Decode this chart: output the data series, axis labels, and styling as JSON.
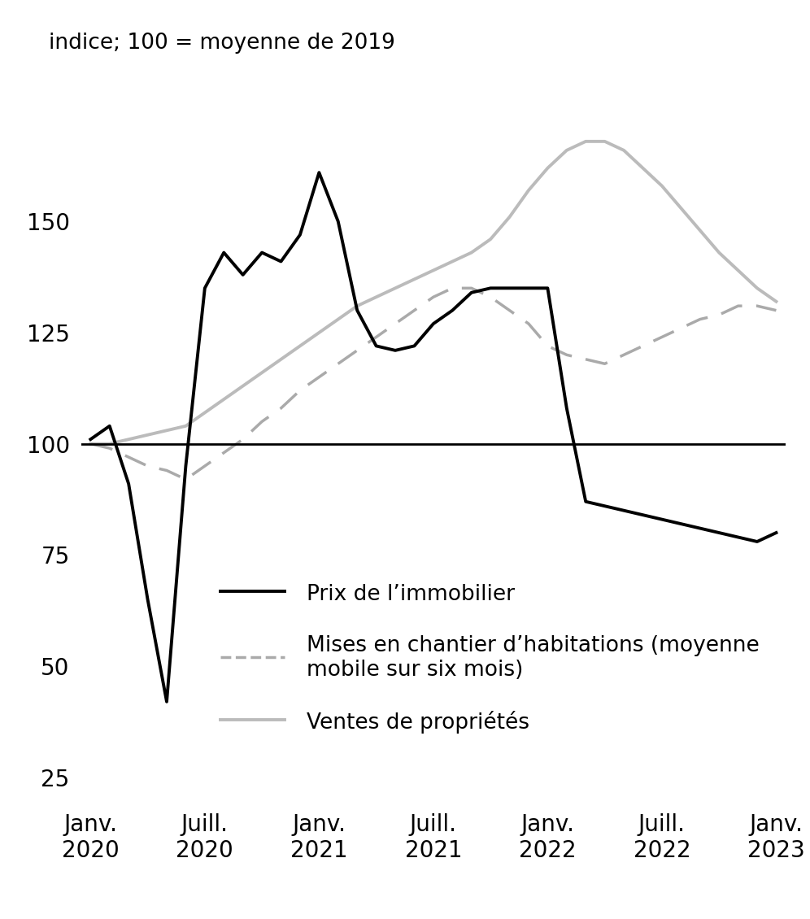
{
  "ylabel": "indice; 100 = moyenne de 2019",
  "ylim": [
    20,
    175
  ],
  "yticks": [
    25,
    50,
    75,
    100,
    125,
    150
  ],
  "background_color": "#ffffff",
  "line_color_ventes": "#000000",
  "line_color_mises": "#aaaaaa",
  "line_color_prix": "#bbbbbb",
  "legend_labels": [
    "Ventes de propriétés",
    "Mises en chantier d’habitations (moyenne\nmobile sur six mois)",
    "Prix de l’immobilier"
  ],
  "x_tick_labels": [
    "Janv.\n2020",
    "Juill.\n2020",
    "Janv.\n2021",
    "Juill.\n2021",
    "Janv.\n2022",
    "Juill.\n2022",
    "Janv.\n2023"
  ],
  "x_tick_positions": [
    0,
    6,
    12,
    18,
    24,
    30,
    36
  ],
  "ventes": [
    101,
    104,
    91,
    65,
    42,
    95,
    135,
    143,
    138,
    143,
    141,
    147,
    161,
    150,
    130,
    122,
    121,
    122,
    127,
    130,
    134,
    135,
    135,
    135,
    135,
    108,
    87,
    86,
    85,
    84,
    83,
    82,
    81,
    80,
    79,
    78,
    80
  ],
  "mises": [
    100,
    99,
    97,
    95,
    94,
    92,
    95,
    98,
    101,
    105,
    108,
    112,
    115,
    118,
    121,
    124,
    127,
    130,
    133,
    135,
    135,
    133,
    130,
    127,
    122,
    120,
    119,
    118,
    120,
    122,
    124,
    126,
    128,
    129,
    131,
    131,
    130
  ],
  "prix": [
    100,
    100,
    101,
    102,
    103,
    104,
    107,
    110,
    113,
    116,
    119,
    122,
    125,
    128,
    131,
    133,
    135,
    137,
    139,
    141,
    143,
    146,
    151,
    157,
    162,
    166,
    168,
    168,
    166,
    162,
    158,
    153,
    148,
    143,
    139,
    135,
    132
  ]
}
